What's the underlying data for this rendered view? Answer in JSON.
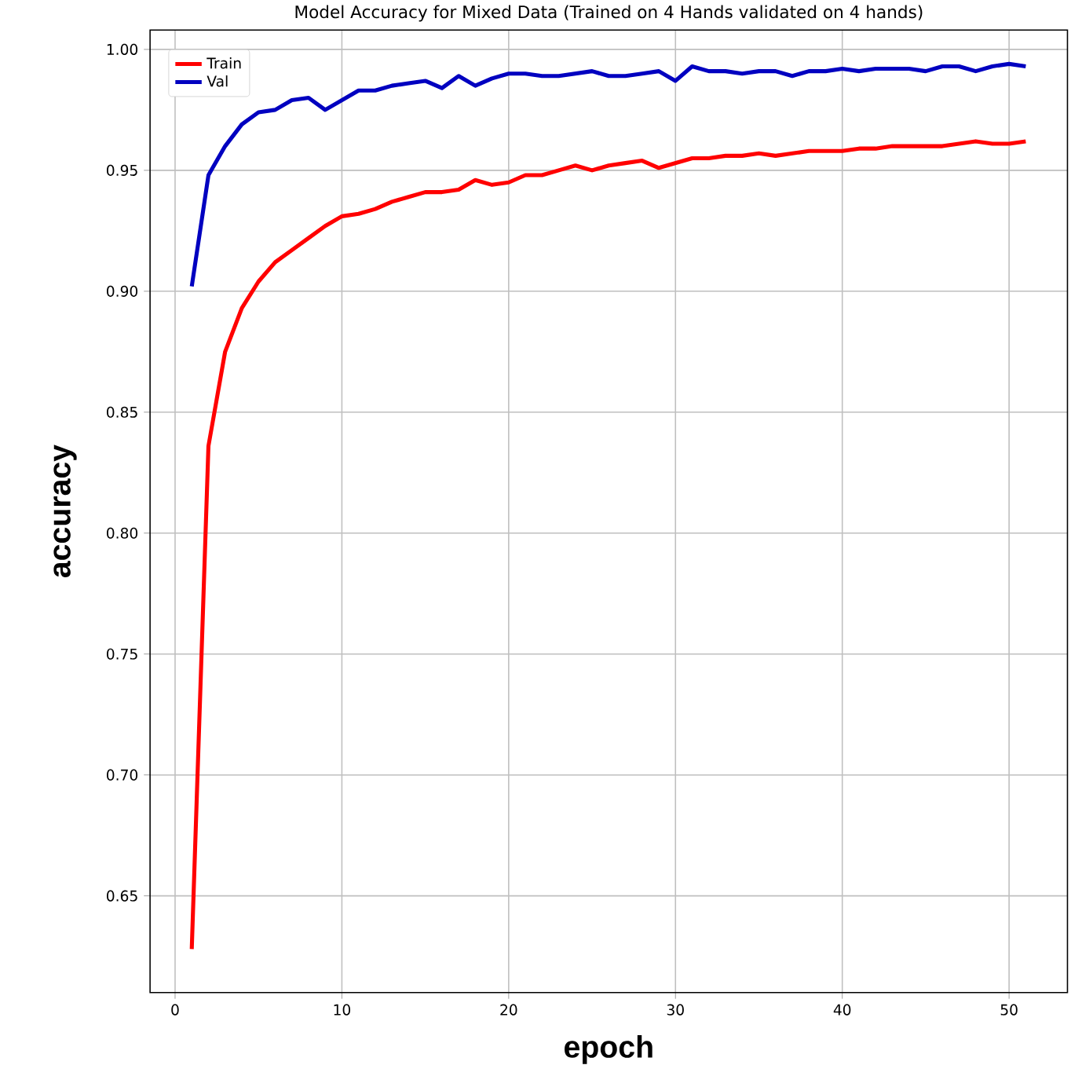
{
  "chart_data": {
    "type": "line",
    "title": "Model Accuracy for Mixed Data (Trained on 4 Hands validated on 4 hands)",
    "xlabel": "epoch",
    "ylabel": "accuracy",
    "x": [
      1,
      2,
      3,
      4,
      5,
      6,
      7,
      8,
      9,
      10,
      11,
      12,
      13,
      14,
      15,
      16,
      17,
      18,
      19,
      20,
      21,
      22,
      23,
      24,
      25,
      26,
      27,
      28,
      29,
      30,
      31,
      32,
      33,
      34,
      35,
      36,
      37,
      38,
      39,
      40,
      41,
      42,
      43,
      44,
      45,
      46,
      47,
      48,
      49,
      50,
      51
    ],
    "series": [
      {
        "name": "Train",
        "color": "#ff0000",
        "values": [
          0.628,
          0.836,
          0.875,
          0.893,
          0.904,
          0.912,
          0.917,
          0.922,
          0.927,
          0.931,
          0.932,
          0.934,
          0.937,
          0.939,
          0.941,
          0.941,
          0.942,
          0.946,
          0.944,
          0.945,
          0.948,
          0.948,
          0.95,
          0.952,
          0.95,
          0.952,
          0.953,
          0.954,
          0.951,
          0.953,
          0.955,
          0.955,
          0.956,
          0.956,
          0.957,
          0.956,
          0.957,
          0.958,
          0.958,
          0.958,
          0.959,
          0.959,
          0.96,
          0.96,
          0.96,
          0.96,
          0.961,
          0.962,
          0.961,
          0.961,
          0.962
        ]
      },
      {
        "name": "Val",
        "color": "#0000c0",
        "values": [
          0.902,
          0.948,
          0.96,
          0.969,
          0.974,
          0.975,
          0.979,
          0.98,
          0.975,
          0.979,
          0.983,
          0.983,
          0.985,
          0.986,
          0.987,
          0.984,
          0.989,
          0.985,
          0.988,
          0.99,
          0.99,
          0.989,
          0.989,
          0.99,
          0.991,
          0.989,
          0.989,
          0.99,
          0.991,
          0.987,
          0.993,
          0.991,
          0.991,
          0.99,
          0.991,
          0.991,
          0.989,
          0.991,
          0.991,
          0.992,
          0.991,
          0.992,
          0.992,
          0.992,
          0.991,
          0.993,
          0.993,
          0.991,
          0.993,
          0.994,
          0.993
        ]
      }
    ],
    "xlim": [
      -1.5,
      53.5
    ],
    "ylim": [
      0.61,
      1.008
    ],
    "xticks": [
      0,
      10,
      20,
      30,
      40,
      50
    ],
    "yticks": [
      {
        "value": 0.65,
        "label": "0.65"
      },
      {
        "value": 0.7,
        "label": "0.70"
      },
      {
        "value": 0.75,
        "label": "0.75"
      },
      {
        "value": 0.8,
        "label": "0.80"
      },
      {
        "value": 0.85,
        "label": "0.85"
      },
      {
        "value": 0.9,
        "label": "0.90"
      },
      {
        "value": 0.95,
        "label": "0.95"
      },
      {
        "value": 1.0,
        "label": "1.00"
      }
    ],
    "grid": true,
    "legend": "top left",
    "line_style": "solid",
    "marker": "none"
  }
}
